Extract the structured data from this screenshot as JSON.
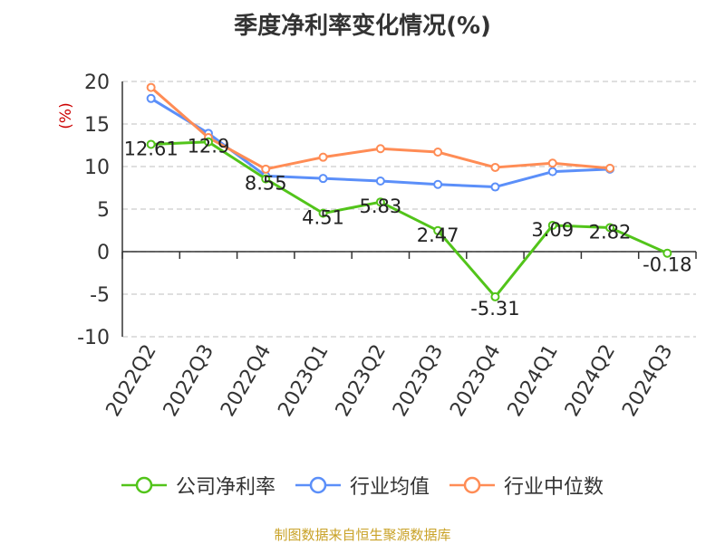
{
  "chart_data": {
    "type": "line",
    "title": "季度净利率变化情况(%)",
    "ylabel": "(%)",
    "xlabel": "",
    "ylim": [
      -10,
      20
    ],
    "yticks": [
      -10,
      -5,
      0,
      5,
      10,
      15,
      20
    ],
    "grid": true,
    "legend_position": "bottom",
    "categories": [
      "2022Q2",
      "2022Q3",
      "2022Q4",
      "2023Q1",
      "2023Q2",
      "2023Q3",
      "2023Q4",
      "2024Q1",
      "2024Q2",
      "2024Q3"
    ],
    "series": [
      {
        "name": "公司净利率",
        "color": "#52c41a",
        "values": [
          12.61,
          12.9,
          8.55,
          4.51,
          5.83,
          2.47,
          -5.31,
          3.09,
          2.82,
          -0.18
        ],
        "labels": [
          "12.61",
          "12.9",
          "8.55",
          "4.51",
          "5.83",
          "2.47",
          "-5.31",
          "3.09",
          "2.82",
          "-0.18"
        ]
      },
      {
        "name": "行业均值",
        "color": "#5b8ff9",
        "values": [
          18.0,
          13.9,
          8.9,
          8.6,
          8.3,
          7.9,
          7.6,
          9.4,
          9.7,
          null
        ]
      },
      {
        "name": "行业中位数",
        "color": "#ff8c55",
        "values": [
          19.3,
          13.4,
          9.7,
          11.1,
          12.1,
          11.7,
          9.9,
          10.4,
          9.8,
          null
        ]
      }
    ]
  },
  "source": "制图数据来自恒生聚源数据库"
}
